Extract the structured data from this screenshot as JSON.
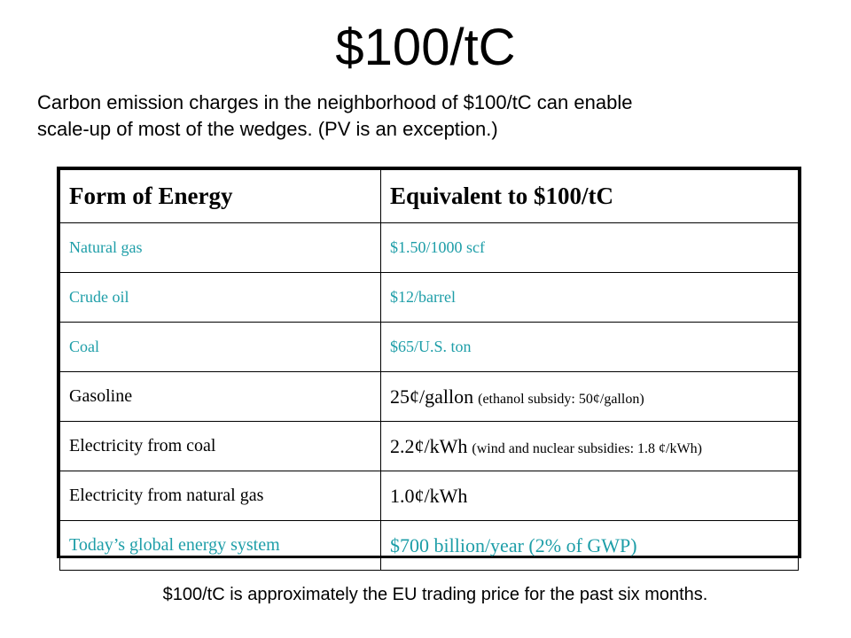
{
  "title": "$100/tC",
  "intro": {
    "line1": "Carbon emission charges in the neighborhood of $100/tC can enable",
    "line2": "scale-up of most of the wedges. (PV is an exception.)"
  },
  "table": {
    "headers": [
      "Form of Energy",
      "Equivalent to $100/tC"
    ],
    "rows": [
      {
        "form": "Natural gas",
        "equiv": "$1.50/1000 scf",
        "equiv_note": ""
      },
      {
        "form": "Crude oil",
        "equiv": "$12/barrel",
        "equiv_note": ""
      },
      {
        "form": "Coal",
        "equiv": "$65/U.S. ton",
        "equiv_note": ""
      },
      {
        "form": "Gasoline",
        "equiv": "25¢/gallon",
        "equiv_note": "(ethanol subsidy: 50¢/gallon)"
      },
      {
        "form": "Electricity from coal",
        "equiv": "2.2¢/kWh",
        "equiv_note": "(wind and nuclear subsidies: 1.8 ¢/kWh)"
      },
      {
        "form": "Electricity from natural gas",
        "equiv": "1.0¢/kWh",
        "equiv_note": ""
      },
      {
        "form": "Today’s global energy system",
        "equiv": "$700 billion/year (2% of GWP)",
        "equiv_note": ""
      }
    ]
  },
  "footer": "$100/tC is approximately the EU trading price for the past six months.",
  "colors": {
    "teal_text": "#1e9ea8",
    "black_text": "#000000"
  }
}
